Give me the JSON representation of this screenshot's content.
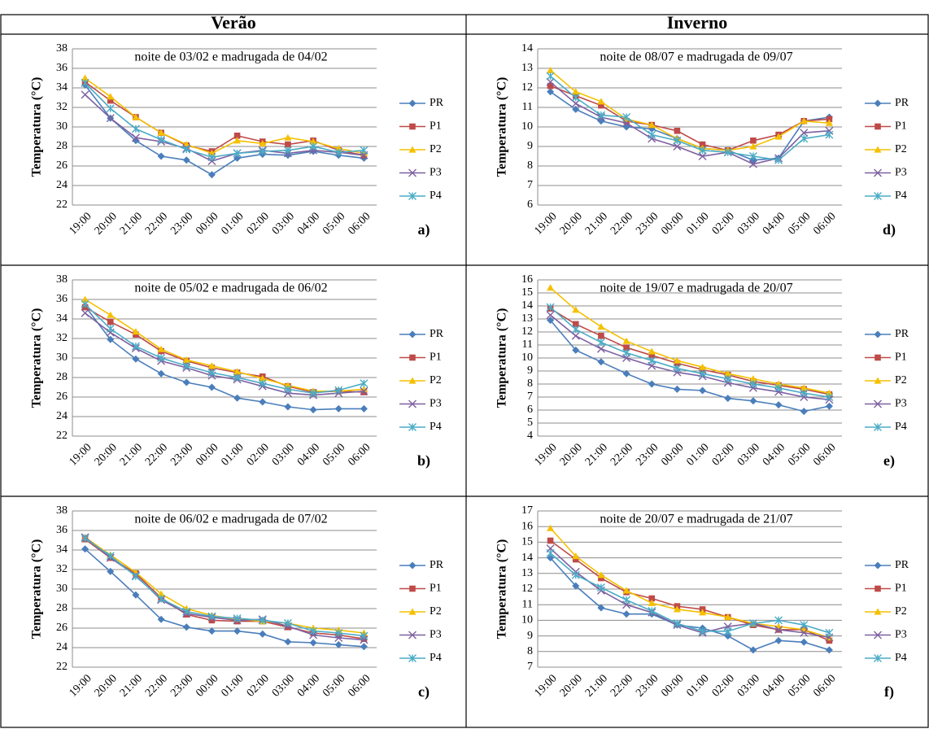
{
  "columns": [
    "Verão",
    "Inverno"
  ],
  "chart_data": [
    {
      "type": "line",
      "title": "noite de 03/02 e madrugada de 04/02",
      "panel_label": "a)",
      "ylabel": "Temperatura (°C)",
      "categories": [
        "19:00",
        "20:00",
        "21:00",
        "22:00",
        "23:00",
        "00:00",
        "01:00",
        "02:00",
        "03:00",
        "04:00",
        "05:00",
        "06:00"
      ],
      "ylim": [
        22,
        38
      ],
      "yticks": [
        22,
        24,
        26,
        28,
        30,
        32,
        34,
        36,
        38
      ],
      "grid": true,
      "series": [
        {
          "name": "PR",
          "color": "#4a7ebb",
          "marker": "diamond",
          "values": [
            34.3,
            30.9,
            28.6,
            27.0,
            26.6,
            25.1,
            26.8,
            27.2,
            27.1,
            27.5,
            27.1,
            26.8
          ]
        },
        {
          "name": "P1",
          "color": "#be4b48",
          "marker": "square",
          "values": [
            34.6,
            32.7,
            31.0,
            29.4,
            28.1,
            27.5,
            29.1,
            28.5,
            28.2,
            28.6,
            27.6,
            27.1
          ]
        },
        {
          "name": "P2",
          "color": "#f5c000",
          "marker": "triangle",
          "values": [
            35.0,
            33.1,
            31.0,
            29.4,
            28.2,
            27.3,
            28.6,
            28.3,
            28.9,
            28.5,
            27.8,
            27.3
          ]
        },
        {
          "name": "P3",
          "color": "#7d60a0",
          "marker": "x",
          "values": [
            33.3,
            30.9,
            28.9,
            28.5,
            27.8,
            26.5,
            27.3,
            27.6,
            27.3,
            27.6,
            27.4,
            27.1
          ]
        },
        {
          "name": "P4",
          "color": "#4bacc6",
          "marker": "star",
          "values": [
            34.5,
            31.9,
            29.8,
            28.7,
            27.7,
            26.9,
            27.3,
            27.5,
            27.6,
            28.0,
            27.4,
            27.6
          ]
        }
      ]
    },
    {
      "type": "line",
      "title": "noite de 05/02 e madrugada de 06/02",
      "panel_label": "b)",
      "ylabel": "Temperatura (°C)",
      "categories": [
        "19:00",
        "20:00",
        "21:00",
        "22:00",
        "23:00",
        "00:00",
        "01:00",
        "02:00",
        "03:00",
        "04:00",
        "05:00",
        "06:00"
      ],
      "ylim": [
        22,
        38
      ],
      "yticks": [
        22,
        24,
        26,
        28,
        30,
        32,
        34,
        36,
        38
      ],
      "grid": true,
      "series": [
        {
          "name": "PR",
          "color": "#4a7ebb",
          "marker": "diamond",
          "values": [
            35.3,
            31.9,
            29.9,
            28.4,
            27.5,
            27.0,
            25.9,
            25.5,
            25.0,
            24.7,
            24.8,
            24.8
          ]
        },
        {
          "name": "P1",
          "color": "#be4b48",
          "marker": "square",
          "values": [
            35.2,
            33.7,
            32.4,
            30.7,
            29.7,
            29.0,
            28.5,
            28.1,
            27.1,
            26.5,
            26.6,
            26.5
          ]
        },
        {
          "name": "P2",
          "color": "#f5c000",
          "marker": "triangle",
          "values": [
            36.0,
            34.4,
            32.7,
            30.9,
            29.8,
            29.2,
            28.6,
            27.9,
            27.2,
            26.6,
            26.6,
            26.8
          ]
        },
        {
          "name": "P3",
          "color": "#7d60a0",
          "marker": "x",
          "values": [
            34.6,
            32.6,
            31.0,
            29.7,
            29.0,
            28.2,
            27.8,
            27.1,
            26.4,
            26.2,
            26.4,
            26.6
          ]
        },
        {
          "name": "P4",
          "color": "#4bacc6",
          "marker": "star",
          "values": [
            35.5,
            33.0,
            31.2,
            30.0,
            29.2,
            28.5,
            28.0,
            27.4,
            26.8,
            26.4,
            26.7,
            27.4
          ]
        }
      ]
    },
    {
      "type": "line",
      "title": "noite de 06/02 e madrugada de 07/02",
      "panel_label": "c)",
      "ylabel": "Temperatura (°C)",
      "categories": [
        "19:00",
        "20:00",
        "21:00",
        "22:00",
        "23:00",
        "00:00",
        "01:00",
        "02:00",
        "03:00",
        "04:00",
        "05:00",
        "06:00"
      ],
      "ylim": [
        22,
        38
      ],
      "yticks": [
        22,
        24,
        26,
        28,
        30,
        32,
        34,
        36,
        38
      ],
      "grid": true,
      "series": [
        {
          "name": "PR",
          "color": "#4a7ebb",
          "marker": "diamond",
          "values": [
            34.1,
            31.8,
            29.4,
            26.9,
            26.1,
            25.7,
            25.7,
            25.4,
            24.6,
            24.5,
            24.3,
            24.1
          ]
        },
        {
          "name": "P1",
          "color": "#be4b48",
          "marker": "square",
          "values": [
            35.1,
            33.2,
            31.6,
            29.1,
            27.4,
            26.8,
            26.7,
            26.7,
            26.1,
            25.5,
            25.3,
            24.9
          ]
        },
        {
          "name": "P2",
          "color": "#f5c000",
          "marker": "triangle",
          "values": [
            35.3,
            33.5,
            31.7,
            29.5,
            28.0,
            27.3,
            26.9,
            26.7,
            26.5,
            26.0,
            25.8,
            25.5
          ]
        },
        {
          "name": "P3",
          "color": "#7d60a0",
          "marker": "x",
          "values": [
            35.3,
            33.2,
            31.4,
            28.9,
            27.5,
            27.1,
            26.8,
            26.9,
            26.2,
            25.3,
            25.0,
            24.8
          ]
        },
        {
          "name": "P4",
          "color": "#4bacc6",
          "marker": "star",
          "values": [
            35.2,
            33.4,
            31.3,
            29.0,
            27.7,
            27.2,
            27.0,
            26.8,
            26.5,
            25.7,
            25.5,
            25.2
          ]
        }
      ]
    },
    {
      "type": "line",
      "title": "noite de 08/07 e madrugada de 09/07",
      "panel_label": "d)",
      "ylabel": "Temperatura (°C)",
      "categories": [
        "19:00",
        "20:00",
        "21:00",
        "22:00",
        "23:00",
        "00:00",
        "01:00",
        "02:00",
        "03:00",
        "04:00",
        "05:00",
        "06:00"
      ],
      "ylim": [
        6,
        14
      ],
      "yticks": [
        6,
        7,
        8,
        9,
        10,
        11,
        12,
        13,
        14
      ],
      "grid": true,
      "series": [
        {
          "name": "PR",
          "color": "#4a7ebb",
          "marker": "diamond",
          "values": [
            11.8,
            10.9,
            10.3,
            10.0,
            9.9,
            9.4,
            8.9,
            8.8,
            8.3,
            8.4,
            10.3,
            10.5
          ]
        },
        {
          "name": "P1",
          "color": "#be4b48",
          "marker": "square",
          "values": [
            12.1,
            11.6,
            11.1,
            10.3,
            10.1,
            9.8,
            9.1,
            8.8,
            9.3,
            9.6,
            10.3,
            10.4
          ]
        },
        {
          "name": "P2",
          "color": "#f5c000",
          "marker": "triangle",
          "values": [
            12.9,
            11.8,
            11.3,
            10.4,
            10.1,
            9.4,
            8.9,
            8.8,
            9.0,
            9.5,
            10.3,
            10.2
          ]
        },
        {
          "name": "P3",
          "color": "#7d60a0",
          "marker": "x",
          "values": [
            12.3,
            11.2,
            10.5,
            10.2,
            9.4,
            9.0,
            8.5,
            8.7,
            8.1,
            8.4,
            9.7,
            9.8
          ]
        },
        {
          "name": "P4",
          "color": "#4bacc6",
          "marker": "star",
          "values": [
            12.6,
            11.5,
            10.6,
            10.5,
            9.6,
            9.3,
            8.8,
            8.7,
            8.5,
            8.3,
            9.4,
            9.6
          ]
        }
      ]
    },
    {
      "type": "line",
      "title": "noite de 19/07 e madrugada de 20/07",
      "panel_label": "e)",
      "ylabel": "Temperatura (°C)",
      "categories": [
        "19:00",
        "20:00",
        "21:00",
        "22:00",
        "23:00",
        "00:00",
        "01:00",
        "02:00",
        "03:00",
        "04:00",
        "05:00",
        "06:00"
      ],
      "ylim": [
        4,
        16
      ],
      "yticks": [
        4,
        5,
        6,
        7,
        8,
        9,
        10,
        11,
        12,
        13,
        14,
        15,
        16
      ],
      "grid": true,
      "series": [
        {
          "name": "PR",
          "color": "#4a7ebb",
          "marker": "diamond",
          "values": [
            12.9,
            10.6,
            9.7,
            8.8,
            8.0,
            7.6,
            7.5,
            6.9,
            6.7,
            6.4,
            5.9,
            6.3
          ]
        },
        {
          "name": "P1",
          "color": "#be4b48",
          "marker": "square",
          "values": [
            13.8,
            12.6,
            11.7,
            10.8,
            10.2,
            9.6,
            9.1,
            8.7,
            8.2,
            7.9,
            7.6,
            7.2
          ]
        },
        {
          "name": "P2",
          "color": "#f5c000",
          "marker": "triangle",
          "values": [
            15.4,
            13.7,
            12.4,
            11.3,
            10.5,
            9.8,
            9.3,
            8.8,
            8.4,
            8.0,
            7.7,
            7.3
          ]
        },
        {
          "name": "P3",
          "color": "#7d60a0",
          "marker": "x",
          "values": [
            13.3,
            11.7,
            10.7,
            10.0,
            9.4,
            8.9,
            8.6,
            8.1,
            7.7,
            7.4,
            7.0,
            6.8
          ]
        },
        {
          "name": "P4",
          "color": "#4bacc6",
          "marker": "star",
          "values": [
            13.9,
            12.2,
            11.2,
            10.4,
            9.8,
            9.2,
            8.8,
            8.4,
            8.0,
            7.7,
            7.3,
            7.0
          ]
        }
      ]
    },
    {
      "type": "line",
      "title": "noite de 20/07 e madrugada de 21/07",
      "panel_label": "f)",
      "ylabel": "Temperatura (°C)",
      "categories": [
        "19:00",
        "20:00",
        "21:00",
        "22:00",
        "23:00",
        "00:00",
        "01:00",
        "02:00",
        "03:00",
        "04:00",
        "05:00",
        "06:00"
      ],
      "ylim": [
        7,
        17
      ],
      "yticks": [
        7,
        8,
        9,
        10,
        11,
        12,
        13,
        14,
        15,
        16,
        17
      ],
      "grid": true,
      "series": [
        {
          "name": "PR",
          "color": "#4a7ebb",
          "marker": "diamond",
          "values": [
            14.0,
            12.2,
            10.8,
            10.4,
            10.4,
            9.7,
            9.5,
            9.0,
            8.1,
            8.7,
            8.6,
            8.1
          ]
        },
        {
          "name": "P1",
          "color": "#be4b48",
          "marker": "square",
          "values": [
            15.1,
            13.9,
            12.7,
            11.8,
            11.4,
            10.9,
            10.7,
            10.2,
            9.7,
            9.4,
            9.4,
            8.7
          ]
        },
        {
          "name": "P2",
          "color": "#f5c000",
          "marker": "triangle",
          "values": [
            15.9,
            14.1,
            12.9,
            11.9,
            11.1,
            10.7,
            10.5,
            10.2,
            9.8,
            9.6,
            9.4,
            8.9
          ]
        },
        {
          "name": "P3",
          "color": "#7d60a0",
          "marker": "x",
          "values": [
            14.6,
            13.1,
            11.9,
            11.0,
            10.5,
            9.7,
            9.2,
            9.6,
            9.8,
            9.4,
            9.2,
            8.9
          ]
        },
        {
          "name": "P4",
          "color": "#4bacc6",
          "marker": "star",
          "values": [
            14.3,
            12.9,
            12.1,
            11.3,
            10.6,
            9.8,
            9.3,
            9.3,
            9.8,
            10.0,
            9.7,
            9.2
          ]
        }
      ]
    }
  ]
}
